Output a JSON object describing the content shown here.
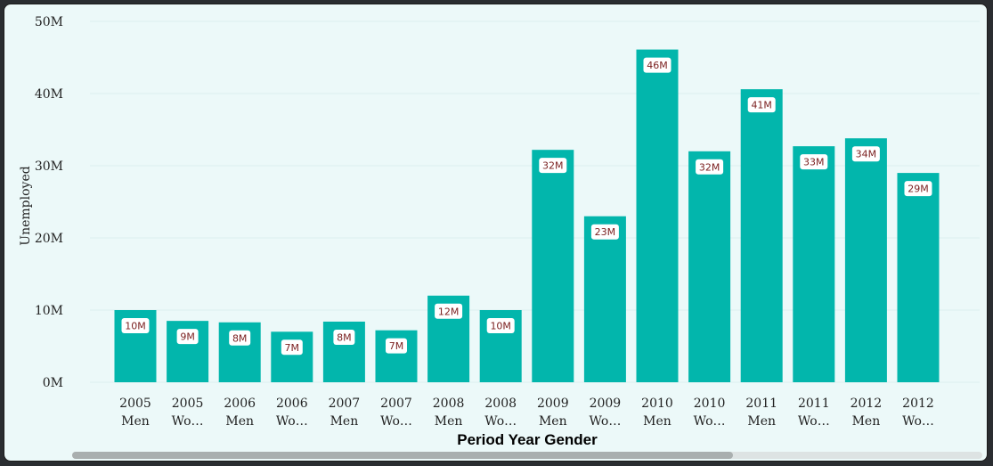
{
  "chart_data": {
    "type": "bar",
    "xlabel": "Period Year Gender",
    "ylabel": "Unemployed",
    "ylim": [
      0,
      50
    ],
    "yticks": [
      "0M",
      "10M",
      "20M",
      "30M",
      "40M",
      "50M"
    ],
    "grid": true,
    "bar_color": "#02b6ac",
    "label_color": "#7a1f1f",
    "categories": [
      [
        "2005",
        "Men"
      ],
      [
        "2005",
        "Wo…"
      ],
      [
        "2006",
        "Men"
      ],
      [
        "2006",
        "Wo…"
      ],
      [
        "2007",
        "Men"
      ],
      [
        "2007",
        "Wo…"
      ],
      [
        "2008",
        "Men"
      ],
      [
        "2008",
        "Wo…"
      ],
      [
        "2009",
        "Men"
      ],
      [
        "2009",
        "Wo…"
      ],
      [
        "2010",
        "Men"
      ],
      [
        "2010",
        "Wo…"
      ],
      [
        "2011",
        "Men"
      ],
      [
        "2011",
        "Wo…"
      ],
      [
        "2012",
        "Men"
      ],
      [
        "2012",
        "Wo…"
      ]
    ],
    "values": [
      10,
      8.5,
      8.3,
      7,
      8.4,
      7.2,
      12,
      10,
      32.2,
      23,
      46.1,
      32,
      40.6,
      32.7,
      33.8,
      29
    ],
    "data_labels": [
      "10M",
      "9M",
      "8M",
      "7M",
      "8M",
      "7M",
      "12M",
      "10M",
      "32M",
      "23M",
      "46M",
      "32M",
      "41M",
      "33M",
      "34M",
      "29M"
    ]
  },
  "scrollbar": {
    "horizontal_visible_fraction": 0.726
  }
}
